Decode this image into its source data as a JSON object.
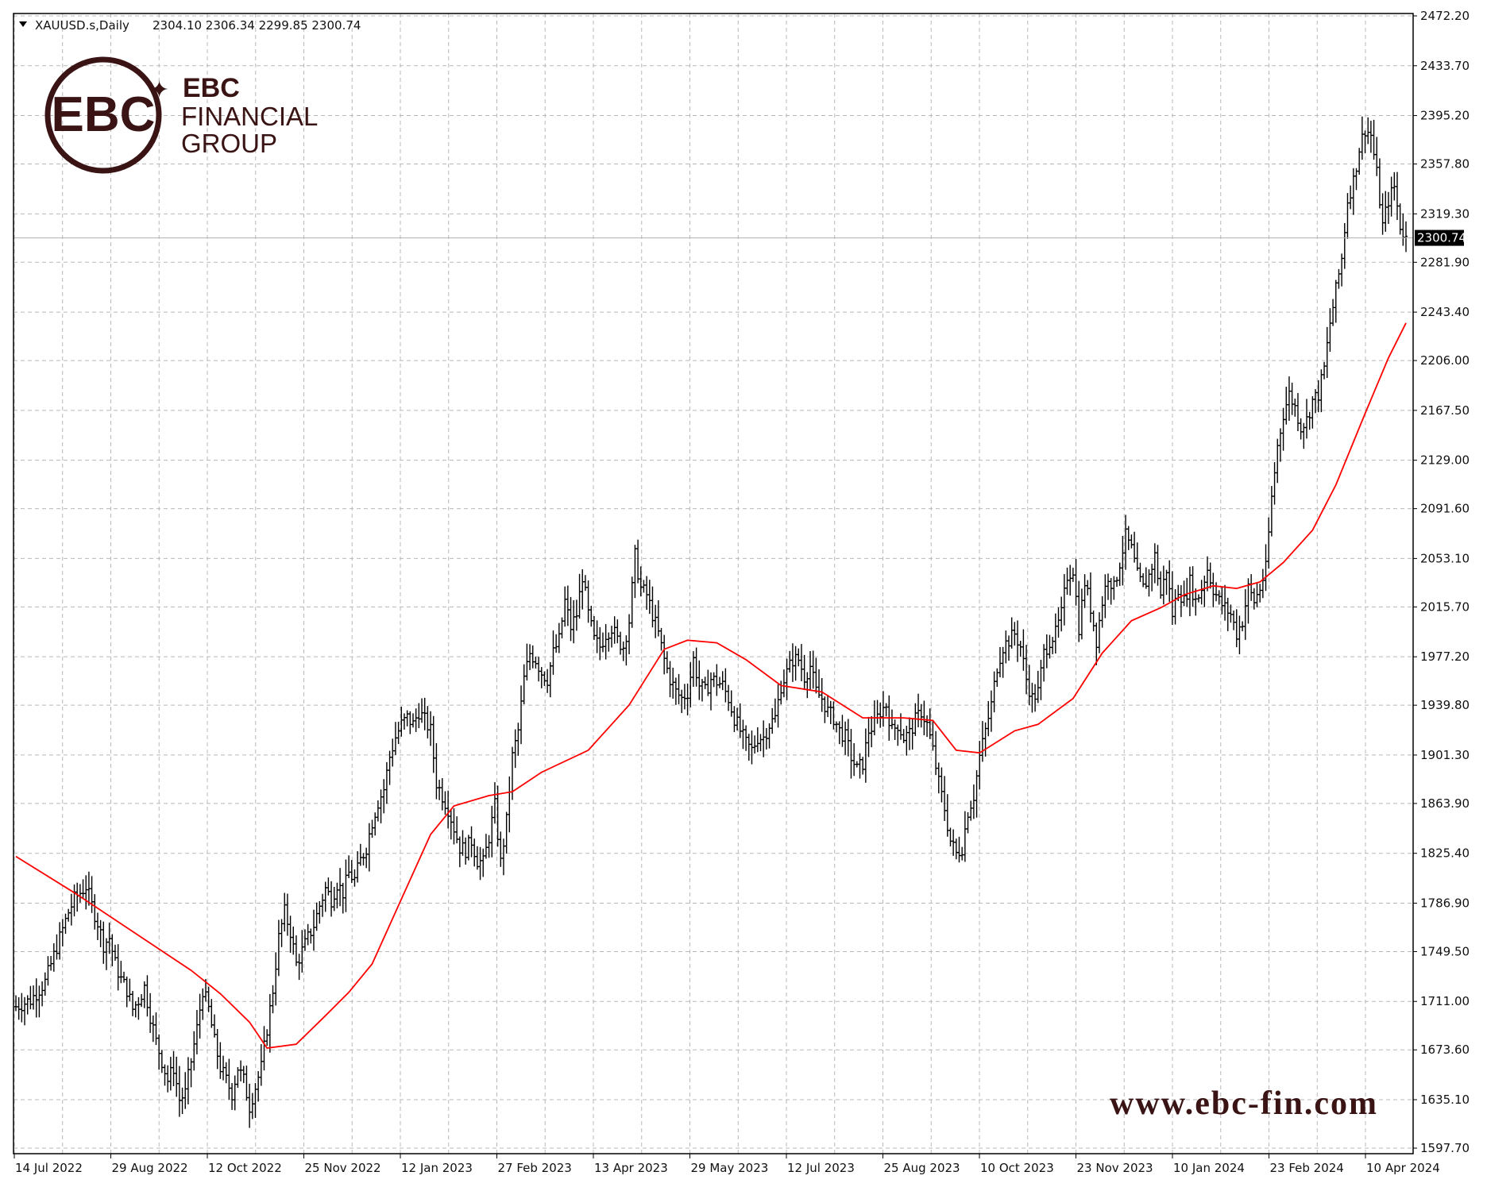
{
  "header": {
    "symbol": "XAUUSD.s,Daily",
    "ohlc": "2304.10 2306.34 2299.85 2300.74"
  },
  "branding": {
    "logo_letters": "EBC",
    "line1": "EBC",
    "line2": "FINANCIAL",
    "line3": "GROUP",
    "website": "www.ebc-fin.com",
    "color": "#3a1414"
  },
  "colors": {
    "background": "#ffffff",
    "grid": "#b8b8b8",
    "bars": "#000000",
    "moving_average": "#ff0000",
    "price_line": "#b0b0b0",
    "price_tag_bg": "#000000",
    "price_tag_text": "#ffffff"
  },
  "chart_data": {
    "type": "ohlc",
    "symbol": "XAUUSD.s",
    "timeframe": "Daily",
    "current_price": 2300.74,
    "current_price_label": "2300.74",
    "ylim": [
      1597.7,
      2472.2
    ],
    "y_ticks": [
      "2472.20",
      "2433.70",
      "2395.20",
      "2357.80",
      "2319.30",
      "2281.90",
      "2243.40",
      "2206.00",
      "2167.50",
      "2129.00",
      "2091.60",
      "2053.10",
      "2015.70",
      "1977.20",
      "1939.80",
      "1901.30",
      "1863.90",
      "1825.40",
      "1786.90",
      "1749.50",
      "1711.00",
      "1673.60",
      "1635.10",
      "1597.70"
    ],
    "x_ticks": [
      "14 Jul 2022",
      "29 Aug 2022",
      "12 Oct 2022",
      "25 Nov 2022",
      "12 Jan 2023",
      "27 Feb 2023",
      "13 Apr 2023",
      "29 May 2023",
      "12 Jul 2023",
      "25 Aug 2023",
      "10 Oct 2023",
      "23 Nov 2023",
      "10 Jan 2024",
      "23 Feb 2024",
      "10 Apr 2024"
    ],
    "grid": true,
    "close_series": [
      [
        0,
        1707
      ],
      [
        5,
        1712
      ],
      [
        10,
        1726
      ],
      [
        15,
        1760
      ],
      [
        18,
        1780
      ],
      [
        20,
        1790
      ],
      [
        22,
        1795
      ],
      [
        24,
        1800
      ],
      [
        26,
        1785
      ],
      [
        28,
        1772
      ],
      [
        30,
        1755
      ],
      [
        32,
        1760
      ],
      [
        34,
        1740
      ],
      [
        36,
        1728
      ],
      [
        38,
        1720
      ],
      [
        40,
        1705
      ],
      [
        42,
        1712
      ],
      [
        44,
        1722
      ],
      [
        46,
        1700
      ],
      [
        48,
        1680
      ],
      [
        50,
        1665
      ],
      [
        52,
        1650
      ],
      [
        54,
        1660
      ],
      [
        56,
        1635
      ],
      [
        58,
        1640
      ],
      [
        60,
        1665
      ],
      [
        62,
        1690
      ],
      [
        64,
        1720
      ],
      [
        66,
        1705
      ],
      [
        68,
        1680
      ],
      [
        70,
        1660
      ],
      [
        72,
        1650
      ],
      [
        74,
        1640
      ],
      [
        76,
        1660
      ],
      [
        78,
        1650
      ],
      [
        80,
        1630
      ],
      [
        82,
        1645
      ],
      [
        84,
        1660
      ],
      [
        86,
        1690
      ],
      [
        88,
        1720
      ],
      [
        90,
        1760
      ],
      [
        92,
        1780
      ],
      [
        94,
        1765
      ],
      [
        96,
        1740
      ],
      [
        98,
        1750
      ],
      [
        100,
        1760
      ],
      [
        102,
        1770
      ],
      [
        104,
        1785
      ],
      [
        106,
        1798
      ],
      [
        108,
        1790
      ],
      [
        110,
        1802
      ],
      [
        112,
        1795
      ],
      [
        114,
        1810
      ],
      [
        116,
        1805
      ],
      [
        118,
        1820
      ],
      [
        120,
        1830
      ],
      [
        122,
        1850
      ],
      [
        124,
        1865
      ],
      [
        126,
        1875
      ],
      [
        128,
        1900
      ],
      [
        130,
        1915
      ],
      [
        132,
        1925
      ],
      [
        134,
        1930
      ],
      [
        136,
        1925
      ],
      [
        138,
        1935
      ],
      [
        140,
        1928
      ],
      [
        142,
        1920
      ],
      [
        144,
        1880
      ],
      [
        146,
        1870
      ],
      [
        148,
        1860
      ],
      [
        150,
        1845
      ],
      [
        152,
        1830
      ],
      [
        154,
        1828
      ],
      [
        156,
        1835
      ],
      [
        158,
        1820
      ],
      [
        160,
        1818
      ],
      [
        162,
        1838
      ],
      [
        164,
        1862
      ],
      [
        166,
        1818
      ],
      [
        168,
        1850
      ],
      [
        170,
        1900
      ],
      [
        172,
        1920
      ],
      [
        174,
        1960
      ],
      [
        176,
        1980
      ],
      [
        178,
        1975
      ],
      [
        180,
        1965
      ],
      [
        182,
        1960
      ],
      [
        184,
        1980
      ],
      [
        186,
        1990
      ],
      [
        188,
        2020
      ],
      [
        190,
        2000
      ],
      [
        192,
        2010
      ],
      [
        194,
        2040
      ],
      [
        196,
        2010
      ],
      [
        198,
        1990
      ],
      [
        200,
        1985
      ],
      [
        202,
        1995
      ],
      [
        204,
        2000
      ],
      [
        206,
        1990
      ],
      [
        208,
        1985
      ],
      [
        210,
        2005
      ],
      [
        212,
        2055
      ],
      [
        214,
        2030
      ],
      [
        216,
        2025
      ],
      [
        218,
        2010
      ],
      [
        220,
        1995
      ],
      [
        222,
        1975
      ],
      [
        224,
        1960
      ],
      [
        226,
        1950
      ],
      [
        228,
        1945
      ],
      [
        230,
        1950
      ],
      [
        232,
        1975
      ],
      [
        234,
        1955
      ],
      [
        236,
        1950
      ],
      [
        238,
        1960
      ],
      [
        240,
        1958
      ],
      [
        242,
        1955
      ],
      [
        244,
        1945
      ],
      [
        246,
        1930
      ],
      [
        248,
        1920
      ],
      [
        250,
        1910
      ],
      [
        252,
        1905
      ],
      [
        254,
        1915
      ],
      [
        256,
        1915
      ],
      [
        258,
        1925
      ],
      [
        260,
        1930
      ],
      [
        262,
        1955
      ],
      [
        264,
        1965
      ],
      [
        266,
        1975
      ],
      [
        268,
        1975
      ],
      [
        270,
        1962
      ],
      [
        272,
        1970
      ],
      [
        274,
        1950
      ],
      [
        276,
        1945
      ],
      [
        278,
        1935
      ],
      [
        280,
        1930
      ],
      [
        282,
        1920
      ],
      [
        284,
        1915
      ],
      [
        286,
        1900
      ],
      [
        288,
        1890
      ],
      [
        290,
        1895
      ],
      [
        292,
        1920
      ],
      [
        294,
        1925
      ],
      [
        296,
        1935
      ],
      [
        298,
        1940
      ],
      [
        300,
        1920
      ],
      [
        302,
        1925
      ],
      [
        304,
        1915
      ],
      [
        306,
        1918
      ],
      [
        308,
        1928
      ],
      [
        310,
        1935
      ],
      [
        312,
        1925
      ],
      [
        314,
        1905
      ],
      [
        316,
        1880
      ],
      [
        318,
        1860
      ],
      [
        320,
        1835
      ],
      [
        322,
        1825
      ],
      [
        324,
        1830
      ],
      [
        326,
        1858
      ],
      [
        328,
        1870
      ],
      [
        330,
        1900
      ],
      [
        332,
        1920
      ],
      [
        334,
        1940
      ],
      [
        336,
        1970
      ],
      [
        338,
        1985
      ],
      [
        340,
        1990
      ],
      [
        342,
        1995
      ],
      [
        344,
        1985
      ],
      [
        346,
        1960
      ],
      [
        348,
        1945
      ],
      [
        350,
        1950
      ],
      [
        352,
        1980
      ],
      [
        354,
        1990
      ],
      [
        356,
        1995
      ],
      [
        358,
        2010
      ],
      [
        360,
        2040
      ],
      [
        362,
        2045
      ],
      [
        364,
        2000
      ],
      [
        366,
        2035
      ],
      [
        368,
        2015
      ],
      [
        370,
        1990
      ],
      [
        372,
        2020
      ],
      [
        374,
        2040
      ],
      [
        376,
        2030
      ],
      [
        378,
        2050
      ],
      [
        380,
        2070
      ],
      [
        382,
        2060
      ],
      [
        384,
        2040
      ],
      [
        386,
        2030
      ],
      [
        388,
        2040
      ],
      [
        390,
        2055
      ],
      [
        392,
        2025
      ],
      [
        394,
        2045
      ],
      [
        396,
        2010
      ],
      [
        398,
        2030
      ],
      [
        400,
        2020
      ],
      [
        402,
        2035
      ],
      [
        404,
        2020
      ],
      [
        406,
        2030
      ],
      [
        408,
        2045
      ],
      [
        410,
        2030
      ],
      [
        412,
        2020
      ],
      [
        414,
        2015
      ],
      [
        416,
        2010
      ],
      [
        418,
        1995
      ],
      [
        420,
        2005
      ],
      [
        422,
        2030
      ],
      [
        424,
        2020
      ],
      [
        426,
        2030
      ],
      [
        428,
        2045
      ],
      [
        430,
        2100
      ],
      [
        432,
        2140
      ],
      [
        434,
        2165
      ],
      [
        436,
        2180
      ],
      [
        438,
        2170
      ],
      [
        440,
        2155
      ],
      [
        442,
        2160
      ],
      [
        444,
        2175
      ],
      [
        446,
        2180
      ],
      [
        448,
        2200
      ],
      [
        450,
        2235
      ],
      [
        452,
        2260
      ],
      [
        454,
        2285
      ],
      [
        456,
        2330
      ],
      [
        458,
        2345
      ],
      [
        460,
        2370
      ],
      [
        462,
        2385
      ],
      [
        464,
        2380
      ],
      [
        466,
        2350
      ],
      [
        468,
        2310
      ],
      [
        470,
        2330
      ],
      [
        472,
        2340
      ],
      [
        474,
        2310
      ],
      [
        476,
        2300
      ]
    ],
    "moving_average": [
      [
        0,
        1823
      ],
      [
        20,
        1795
      ],
      [
        40,
        1765
      ],
      [
        60,
        1735
      ],
      [
        70,
        1717
      ],
      [
        80,
        1695
      ],
      [
        86,
        1675
      ],
      [
        96,
        1678
      ],
      [
        106,
        1700
      ],
      [
        114,
        1718
      ],
      [
        122,
        1740
      ],
      [
        132,
        1790
      ],
      [
        142,
        1840
      ],
      [
        150,
        1862
      ],
      [
        162,
        1870
      ],
      [
        170,
        1873
      ],
      [
        180,
        1888
      ],
      [
        196,
        1905
      ],
      [
        210,
        1940
      ],
      [
        222,
        1983
      ],
      [
        230,
        1990
      ],
      [
        240,
        1988
      ],
      [
        250,
        1975
      ],
      [
        262,
        1955
      ],
      [
        276,
        1950
      ],
      [
        290,
        1930
      ],
      [
        304,
        1930
      ],
      [
        314,
        1928
      ],
      [
        322,
        1905
      ],
      [
        330,
        1903
      ],
      [
        342,
        1920
      ],
      [
        350,
        1925
      ],
      [
        362,
        1945
      ],
      [
        372,
        1980
      ],
      [
        382,
        2005
      ],
      [
        392,
        2015
      ],
      [
        400,
        2025
      ],
      [
        410,
        2032
      ],
      [
        418,
        2030
      ],
      [
        426,
        2035
      ],
      [
        434,
        2050
      ],
      [
        444,
        2075
      ],
      [
        452,
        2110
      ],
      [
        462,
        2165
      ],
      [
        470,
        2208
      ],
      [
        476,
        2235
      ]
    ]
  }
}
